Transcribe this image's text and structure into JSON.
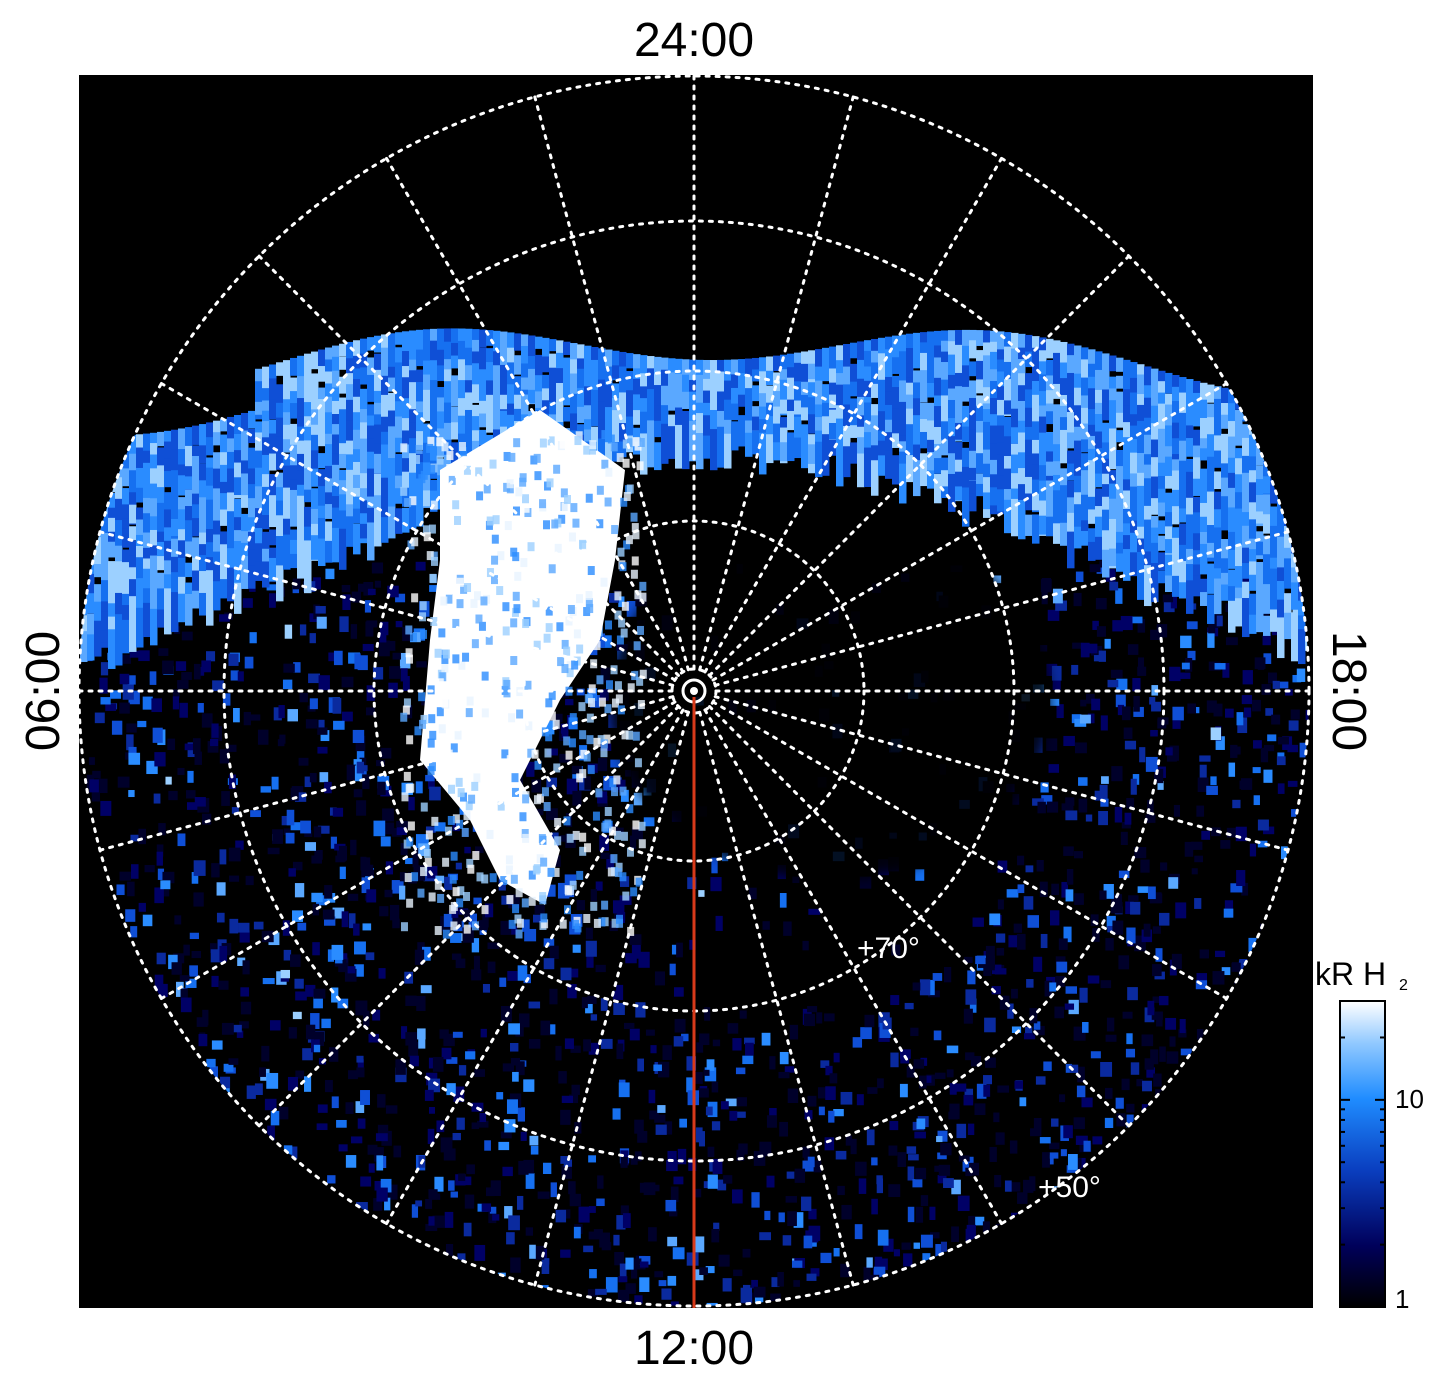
{
  "figure": {
    "projection": "north polar auroral map",
    "background_color": "#000000",
    "grid_color": "#ffffff",
    "meridian_line_color": "#d83a1a",
    "local_time_labels": {
      "top": "24:00",
      "bottom": "12:00",
      "left": "06:00",
      "right": "18:00"
    },
    "latitude_labels": {
      "inner": "+70°",
      "outer": "+50°"
    },
    "colorbar": {
      "title_main": "kR H",
      "title_subscript": "2",
      "scale": "log",
      "range": [
        1,
        30
      ],
      "tick_labels": [
        "10",
        "1"
      ],
      "colors": [
        "#000000",
        "#00005a",
        "#0a3fc0",
        "#1f8cff",
        "#8fc8ff",
        "#ffffff"
      ]
    }
  }
}
